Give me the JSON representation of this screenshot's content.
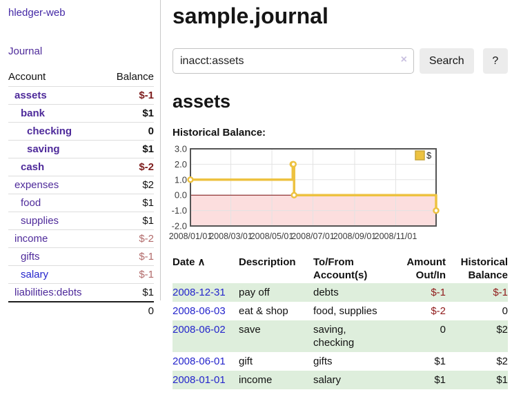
{
  "app": {
    "title": "hledger-web"
  },
  "colors": {
    "link_purple": "#4e2a9a",
    "link_blue": "#2424cc",
    "negative_strong": "#7d1c1c",
    "negative_soft": "#b26b6b",
    "negative_table": "#8f1a1a",
    "row_green": "#deeedc",
    "chart_line_gold": "#edc240",
    "chart_negative_fill": "#fcdede",
    "chart_zero_line": "#7a0c0c"
  },
  "sidebar": {
    "journal_label": "Journal",
    "accounts": {
      "headers": {
        "account": "Account",
        "balance": "Balance"
      },
      "rows": [
        {
          "label": "assets",
          "indent": 1,
          "bold": true,
          "balance": "$-1",
          "balance_style": "neg-strong",
          "link_style": "purple"
        },
        {
          "label": "bank",
          "indent": 2,
          "bold": true,
          "balance": "$1",
          "balance_style": "",
          "link_style": "purple"
        },
        {
          "label": "checking",
          "indent": 3,
          "bold": true,
          "balance": "0",
          "balance_style": "",
          "link_style": "purple"
        },
        {
          "label": "saving",
          "indent": 3,
          "bold": true,
          "balance": "$1",
          "balance_style": "",
          "link_style": "purple"
        },
        {
          "label": "cash",
          "indent": 2,
          "bold": true,
          "balance": "$-2",
          "balance_style": "neg-strong",
          "link_style": "purple"
        },
        {
          "label": "expenses",
          "indent": 1,
          "bold": false,
          "balance": "$2",
          "balance_style": "",
          "link_style": "purple"
        },
        {
          "label": "food",
          "indent": 2,
          "bold": false,
          "balance": "$1",
          "balance_style": "",
          "link_style": "purple"
        },
        {
          "label": "supplies",
          "indent": 2,
          "bold": false,
          "balance": "$1",
          "balance_style": "",
          "link_style": "purple"
        },
        {
          "label": "income",
          "indent": 1,
          "bold": false,
          "balance": "$-2",
          "balance_style": "neg-soft",
          "link_style": "purple"
        },
        {
          "label": "gifts",
          "indent": 2,
          "bold": false,
          "balance": "$-1",
          "balance_style": "neg-soft",
          "link_style": "purple"
        },
        {
          "label": "salary",
          "indent": 2,
          "bold": false,
          "balance": "$-1",
          "balance_style": "neg-soft",
          "link_style": "blue"
        },
        {
          "label": "liabilities:debts",
          "indent": 1,
          "bold": false,
          "balance": "$1",
          "balance_style": "",
          "link_style": "purple"
        }
      ],
      "total": "0"
    }
  },
  "main": {
    "title": "sample.journal",
    "search": {
      "value": "inacct:assets",
      "clear_icon": "×",
      "button_label": "Search",
      "help_button_label": "?"
    },
    "account_heading": "assets",
    "chart_label": "Historical Balance:",
    "register": {
      "headers": {
        "date": "Date",
        "sort_asc_icon": "∧",
        "description": "Description",
        "accounts": "To/From Account(s)",
        "amount": "Amount Out/In",
        "balance": "Historical Balance"
      },
      "rows": [
        {
          "date": "2008-12-31",
          "description": "pay off",
          "accounts": "debts",
          "amount": "$-1",
          "amount_neg": true,
          "balance": "$-1",
          "balance_neg": true
        },
        {
          "date": "2008-06-03",
          "description": "eat & shop",
          "accounts": "food, supplies",
          "amount": "$-2",
          "amount_neg": true,
          "balance": "0",
          "balance_neg": false
        },
        {
          "date": "2008-06-02",
          "description": "save",
          "accounts": "saving, checking",
          "amount": "0",
          "amount_neg": false,
          "balance": "$2",
          "balance_neg": false
        },
        {
          "date": "2008-06-01",
          "description": "gift",
          "accounts": "gifts",
          "amount": "$1",
          "amount_neg": false,
          "balance": "$2",
          "balance_neg": false
        },
        {
          "date": "2008-01-01",
          "description": "income",
          "accounts": "salary",
          "amount": "$1",
          "amount_neg": false,
          "balance": "$1",
          "balance_neg": false
        }
      ]
    }
  },
  "chart_data": {
    "type": "line",
    "style": "step",
    "title": "Historical Balance",
    "series": [
      {
        "name": "$",
        "color": "#edc240",
        "points": [
          [
            "2008-01-01",
            1
          ],
          [
            "2008-06-01",
            2
          ],
          [
            "2008-06-02",
            2
          ],
          [
            "2008-06-03",
            0
          ],
          [
            "2008-12-31",
            -1
          ]
        ]
      }
    ],
    "xlim": [
      "2008-01-01",
      "2008-12-31"
    ],
    "ylim": [
      -2,
      3
    ],
    "y_ticks": [
      3.0,
      2.0,
      1.0,
      0.0,
      -1.0,
      -2.0
    ],
    "x_ticks": [
      "2008/01/01",
      "2008/03/01",
      "2008/05/01",
      "2008/07/01",
      "2008/09/01",
      "2008/11/01"
    ],
    "grid": true,
    "legend_position": "top-right",
    "legend_label": "$",
    "negative_region_fill": "#fcdede",
    "zero_line_color": "#7a0c0c",
    "border_color": "#545454",
    "grid_color": "#e3e3e3"
  }
}
